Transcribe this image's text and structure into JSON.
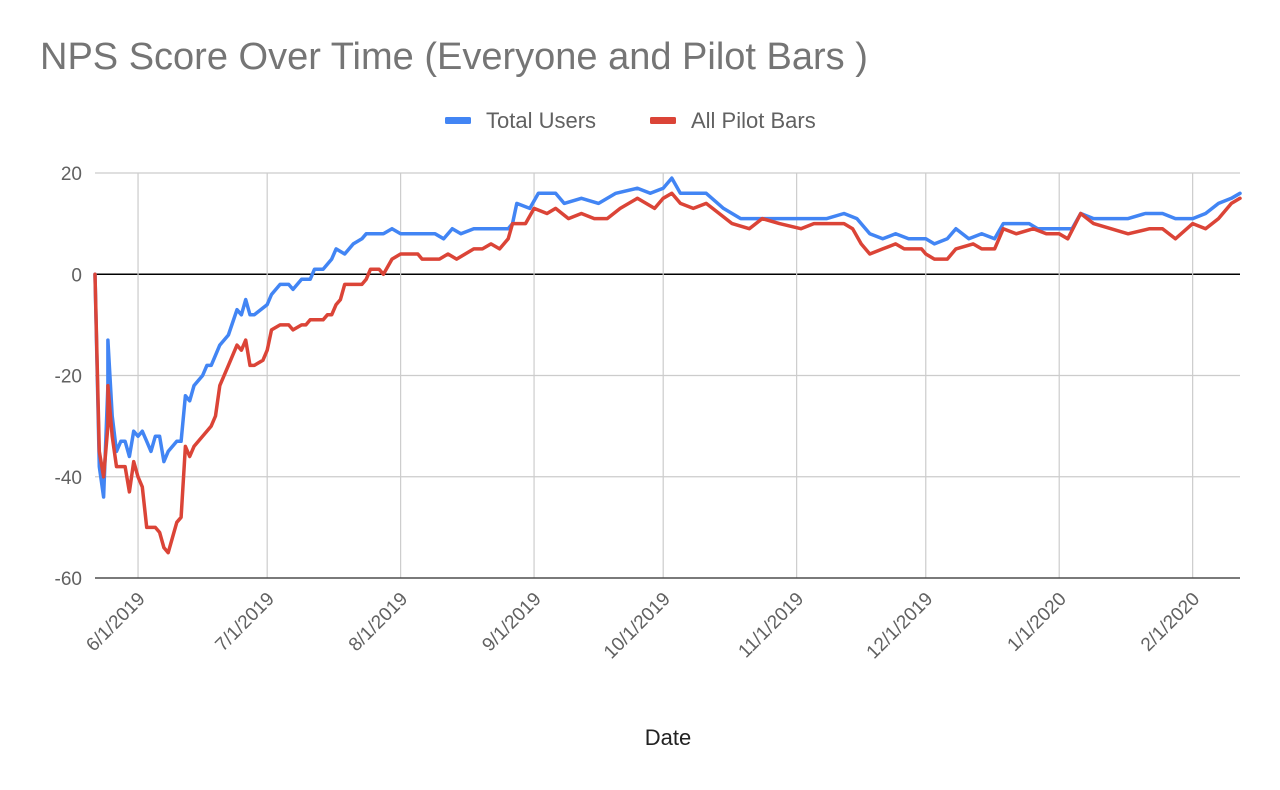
{
  "chart_data": {
    "type": "line",
    "title": "NPS Score Over Time (Everyone and Pilot Bars )",
    "xlabel": "Date",
    "ylabel": "",
    "ylim": [
      -60,
      20
    ],
    "yticks": [
      20,
      0,
      -20,
      -40,
      -60
    ],
    "xlim": [
      "2019-05-22",
      "2020-02-12"
    ],
    "xticks": [
      {
        "date": "2019-06-01",
        "label": "6/1/2019"
      },
      {
        "date": "2019-07-01",
        "label": "7/1/2019"
      },
      {
        "date": "2019-08-01",
        "label": "8/1/2019"
      },
      {
        "date": "2019-09-01",
        "label": "9/1/2019"
      },
      {
        "date": "2019-10-01",
        "label": "10/1/2019"
      },
      {
        "date": "2019-11-01",
        "label": "11/1/2019"
      },
      {
        "date": "2019-12-01",
        "label": "12/1/2019"
      },
      {
        "date": "2020-01-01",
        "label": "1/1/2020"
      },
      {
        "date": "2020-02-01",
        "label": "2/1/2020"
      }
    ],
    "grid": true,
    "legend_position": "top",
    "series": [
      {
        "name": "Total Users",
        "color": "#4285f4",
        "points": [
          [
            "2019-05-22",
            0
          ],
          [
            "2019-05-23",
            -38
          ],
          [
            "2019-05-24",
            -44
          ],
          [
            "2019-05-25",
            -22
          ],
          [
            "2019-05-25",
            -13
          ],
          [
            "2019-05-26",
            -28
          ],
          [
            "2019-05-27",
            -35
          ],
          [
            "2019-05-28",
            -33
          ],
          [
            "2019-05-29",
            -33
          ],
          [
            "2019-05-30",
            -36
          ],
          [
            "2019-05-31",
            -31
          ],
          [
            "2019-06-01",
            -32
          ],
          [
            "2019-06-02",
            -31
          ],
          [
            "2019-06-03",
            -33
          ],
          [
            "2019-06-04",
            -35
          ],
          [
            "2019-06-05",
            -32
          ],
          [
            "2019-06-06",
            -32
          ],
          [
            "2019-06-07",
            -37
          ],
          [
            "2019-06-08",
            -35
          ],
          [
            "2019-06-10",
            -33
          ],
          [
            "2019-06-11",
            -33
          ],
          [
            "2019-06-12",
            -24
          ],
          [
            "2019-06-13",
            -25
          ],
          [
            "2019-06-14",
            -22
          ],
          [
            "2019-06-16",
            -20
          ],
          [
            "2019-06-17",
            -18
          ],
          [
            "2019-06-18",
            -18
          ],
          [
            "2019-06-20",
            -14
          ],
          [
            "2019-06-22",
            -12
          ],
          [
            "2019-06-24",
            -7
          ],
          [
            "2019-06-25",
            -8
          ],
          [
            "2019-06-26",
            -5
          ],
          [
            "2019-06-27",
            -8
          ],
          [
            "2019-06-28",
            -8
          ],
          [
            "2019-07-01",
            -6
          ],
          [
            "2019-07-02",
            -4
          ],
          [
            "2019-07-04",
            -2
          ],
          [
            "2019-07-06",
            -2
          ],
          [
            "2019-07-07",
            -3
          ],
          [
            "2019-07-09",
            -1
          ],
          [
            "2019-07-11",
            -1
          ],
          [
            "2019-07-12",
            1
          ],
          [
            "2019-07-14",
            1
          ],
          [
            "2019-07-16",
            3
          ],
          [
            "2019-07-17",
            5
          ],
          [
            "2019-07-19",
            4
          ],
          [
            "2019-07-21",
            6
          ],
          [
            "2019-07-23",
            7
          ],
          [
            "2019-07-24",
            8
          ],
          [
            "2019-07-26",
            8
          ],
          [
            "2019-07-28",
            8
          ],
          [
            "2019-07-30",
            9
          ],
          [
            "2019-08-01",
            8
          ],
          [
            "2019-08-05",
            8
          ],
          [
            "2019-08-09",
            8
          ],
          [
            "2019-08-11",
            7
          ],
          [
            "2019-08-13",
            9
          ],
          [
            "2019-08-15",
            8
          ],
          [
            "2019-08-18",
            9
          ],
          [
            "2019-08-22",
            9
          ],
          [
            "2019-08-26",
            9
          ],
          [
            "2019-08-27",
            10
          ],
          [
            "2019-08-28",
            14
          ],
          [
            "2019-08-31",
            13
          ],
          [
            "2019-09-02",
            16
          ],
          [
            "2019-09-06",
            16
          ],
          [
            "2019-09-08",
            14
          ],
          [
            "2019-09-12",
            15
          ],
          [
            "2019-09-16",
            14
          ],
          [
            "2019-09-20",
            16
          ],
          [
            "2019-09-25",
            17
          ],
          [
            "2019-09-28",
            16
          ],
          [
            "2019-10-01",
            17
          ],
          [
            "2019-10-03",
            19
          ],
          [
            "2019-10-05",
            16
          ],
          [
            "2019-10-11",
            16
          ],
          [
            "2019-10-15",
            13
          ],
          [
            "2019-10-19",
            11
          ],
          [
            "2019-10-25",
            11
          ],
          [
            "2019-10-28",
            11
          ],
          [
            "2019-11-02",
            11
          ],
          [
            "2019-11-08",
            11
          ],
          [
            "2019-11-12",
            12
          ],
          [
            "2019-11-15",
            11
          ],
          [
            "2019-11-18",
            8
          ],
          [
            "2019-11-21",
            7
          ],
          [
            "2019-11-24",
            8
          ],
          [
            "2019-11-27",
            7
          ],
          [
            "2019-12-01",
            7
          ],
          [
            "2019-12-03",
            6
          ],
          [
            "2019-12-06",
            7
          ],
          [
            "2019-12-08",
            9
          ],
          [
            "2019-12-11",
            7
          ],
          [
            "2019-12-14",
            8
          ],
          [
            "2019-12-17",
            7
          ],
          [
            "2019-12-19",
            10
          ],
          [
            "2019-12-25",
            10
          ],
          [
            "2019-12-27",
            9
          ],
          [
            "2020-01-01",
            9
          ],
          [
            "2020-01-04",
            9
          ],
          [
            "2020-01-06",
            12
          ],
          [
            "2020-01-09",
            11
          ],
          [
            "2020-01-13",
            11
          ],
          [
            "2020-01-17",
            11
          ],
          [
            "2020-01-21",
            12
          ],
          [
            "2020-01-25",
            12
          ],
          [
            "2020-01-28",
            11
          ],
          [
            "2020-02-01",
            11
          ],
          [
            "2020-02-04",
            12
          ],
          [
            "2020-02-07",
            14
          ],
          [
            "2020-02-10",
            15
          ],
          [
            "2020-02-12",
            16
          ]
        ]
      },
      {
        "name": "All Pilot Bars",
        "color": "#db4437",
        "points": [
          [
            "2019-05-22",
            0
          ],
          [
            "2019-05-23",
            -35
          ],
          [
            "2019-05-24",
            -40
          ],
          [
            "2019-05-25",
            -30
          ],
          [
            "2019-05-25",
            -22
          ],
          [
            "2019-05-26",
            -32
          ],
          [
            "2019-05-27",
            -38
          ],
          [
            "2019-05-28",
            -38
          ],
          [
            "2019-05-29",
            -38
          ],
          [
            "2019-05-30",
            -43
          ],
          [
            "2019-05-31",
            -37
          ],
          [
            "2019-06-01",
            -40
          ],
          [
            "2019-06-02",
            -42
          ],
          [
            "2019-06-03",
            -50
          ],
          [
            "2019-06-05",
            -50
          ],
          [
            "2019-06-06",
            -51
          ],
          [
            "2019-06-07",
            -54
          ],
          [
            "2019-06-08",
            -55
          ],
          [
            "2019-06-09",
            -52
          ],
          [
            "2019-06-10",
            -49
          ],
          [
            "2019-06-11",
            -48
          ],
          [
            "2019-06-12",
            -34
          ],
          [
            "2019-06-13",
            -36
          ],
          [
            "2019-06-14",
            -34
          ],
          [
            "2019-06-16",
            -32
          ],
          [
            "2019-06-18",
            -30
          ],
          [
            "2019-06-19",
            -28
          ],
          [
            "2019-06-20",
            -22
          ],
          [
            "2019-06-22",
            -18
          ],
          [
            "2019-06-24",
            -14
          ],
          [
            "2019-06-25",
            -15
          ],
          [
            "2019-06-26",
            -13
          ],
          [
            "2019-06-27",
            -18
          ],
          [
            "2019-06-28",
            -18
          ],
          [
            "2019-06-30",
            -17
          ],
          [
            "2019-07-01",
            -15
          ],
          [
            "2019-07-02",
            -11
          ],
          [
            "2019-07-04",
            -10
          ],
          [
            "2019-07-06",
            -10
          ],
          [
            "2019-07-07",
            -11
          ],
          [
            "2019-07-09",
            -10
          ],
          [
            "2019-07-10",
            -10
          ],
          [
            "2019-07-11",
            -9
          ],
          [
            "2019-07-14",
            -9
          ],
          [
            "2019-07-15",
            -8
          ],
          [
            "2019-07-16",
            -8
          ],
          [
            "2019-07-17",
            -6
          ],
          [
            "2019-07-18",
            -5
          ],
          [
            "2019-07-19",
            -2
          ],
          [
            "2019-07-21",
            -2
          ],
          [
            "2019-07-23",
            -2
          ],
          [
            "2019-07-24",
            -1
          ],
          [
            "2019-07-25",
            1
          ],
          [
            "2019-07-27",
            1
          ],
          [
            "2019-07-28",
            0
          ],
          [
            "2019-07-30",
            3
          ],
          [
            "2019-08-01",
            4
          ],
          [
            "2019-08-05",
            4
          ],
          [
            "2019-08-06",
            3
          ],
          [
            "2019-08-10",
            3
          ],
          [
            "2019-08-12",
            4
          ],
          [
            "2019-08-14",
            3
          ],
          [
            "2019-08-18",
            5
          ],
          [
            "2019-08-20",
            5
          ],
          [
            "2019-08-22",
            6
          ],
          [
            "2019-08-24",
            5
          ],
          [
            "2019-08-26",
            7
          ],
          [
            "2019-08-27",
            10
          ],
          [
            "2019-08-30",
            10
          ],
          [
            "2019-09-01",
            13
          ],
          [
            "2019-09-04",
            12
          ],
          [
            "2019-09-06",
            13
          ],
          [
            "2019-09-09",
            11
          ],
          [
            "2019-09-12",
            12
          ],
          [
            "2019-09-15",
            11
          ],
          [
            "2019-09-18",
            11
          ],
          [
            "2019-09-21",
            13
          ],
          [
            "2019-09-25",
            15
          ],
          [
            "2019-09-29",
            13
          ],
          [
            "2019-10-01",
            15
          ],
          [
            "2019-10-03",
            16
          ],
          [
            "2019-10-05",
            14
          ],
          [
            "2019-10-08",
            13
          ],
          [
            "2019-10-11",
            14
          ],
          [
            "2019-10-14",
            12
          ],
          [
            "2019-10-17",
            10
          ],
          [
            "2019-10-21",
            9
          ],
          [
            "2019-10-24",
            11
          ],
          [
            "2019-10-28",
            10
          ],
          [
            "2019-11-02",
            9
          ],
          [
            "2019-11-05",
            10
          ],
          [
            "2019-11-12",
            10
          ],
          [
            "2019-11-14",
            9
          ],
          [
            "2019-11-16",
            6
          ],
          [
            "2019-11-18",
            4
          ],
          [
            "2019-11-21",
            5
          ],
          [
            "2019-11-24",
            6
          ],
          [
            "2019-11-26",
            5
          ],
          [
            "2019-11-30",
            5
          ],
          [
            "2019-12-01",
            4
          ],
          [
            "2019-12-03",
            3
          ],
          [
            "2019-12-06",
            3
          ],
          [
            "2019-12-08",
            5
          ],
          [
            "2019-12-12",
            6
          ],
          [
            "2019-12-14",
            5
          ],
          [
            "2019-12-17",
            5
          ],
          [
            "2019-12-19",
            9
          ],
          [
            "2019-12-22",
            8
          ],
          [
            "2019-12-26",
            9
          ],
          [
            "2019-12-29",
            8
          ],
          [
            "2020-01-01",
            8
          ],
          [
            "2020-01-03",
            7
          ],
          [
            "2020-01-06",
            12
          ],
          [
            "2020-01-09",
            10
          ],
          [
            "2020-01-13",
            9
          ],
          [
            "2020-01-17",
            8
          ],
          [
            "2020-01-22",
            9
          ],
          [
            "2020-01-25",
            9
          ],
          [
            "2020-01-28",
            7
          ],
          [
            "2020-02-01",
            10
          ],
          [
            "2020-02-04",
            9
          ],
          [
            "2020-02-07",
            11
          ],
          [
            "2020-02-10",
            14
          ],
          [
            "2020-02-12",
            15
          ]
        ]
      }
    ]
  }
}
